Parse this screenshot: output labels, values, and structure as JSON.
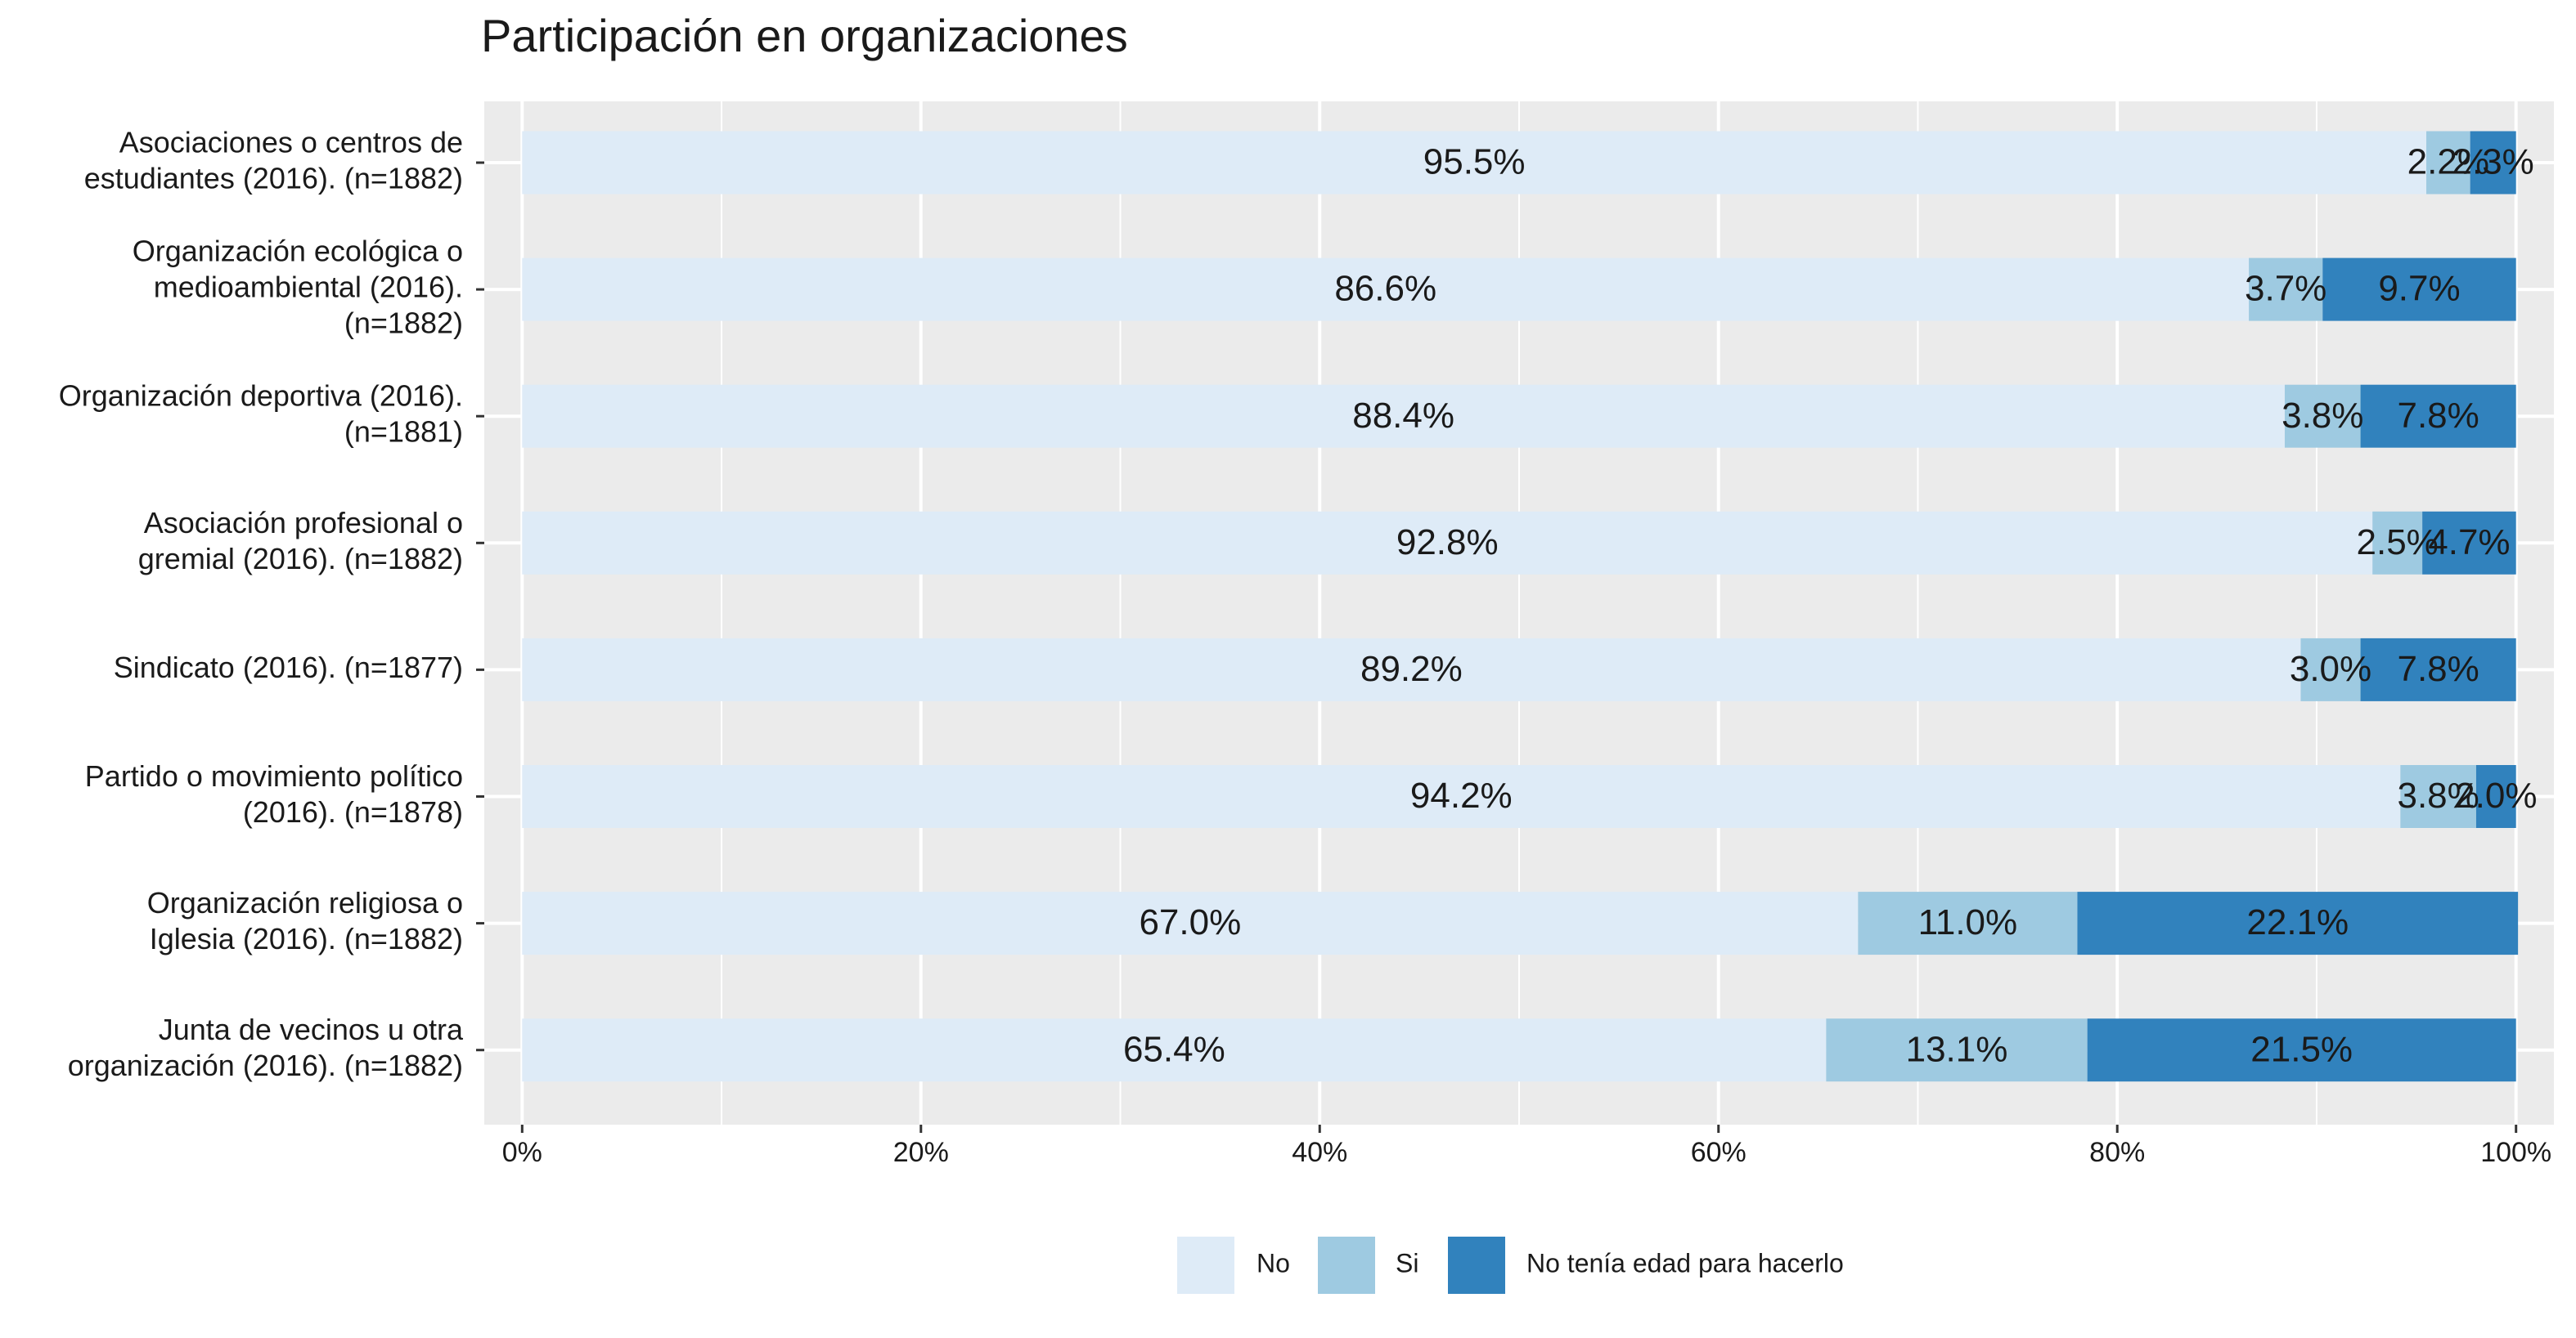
{
  "chart_data": {
    "type": "stacked-barh",
    "title": "Participación en organizaciones",
    "categories": [
      [
        "Asociaciones o centros de",
        "estudiantes (2016). (n=1882)"
      ],
      [
        "Organización ecológica o",
        "medioambiental (2016).",
        "(n=1882)"
      ],
      [
        "Organización deportiva (2016).",
        "(n=1881)"
      ],
      [
        "Asociación profesional o",
        "gremial (2016). (n=1882)"
      ],
      [
        "Sindicato (2016). (n=1877)"
      ],
      [
        "Partido o movimiento político",
        "(2016). (n=1878)"
      ],
      [
        "Organización religiosa o",
        "Iglesia (2016). (n=1882)"
      ],
      [
        "Junta de vecinos u otra",
        "organización (2016). (n=1882)"
      ]
    ],
    "series": [
      {
        "name": "No",
        "color": "#deebf7",
        "values": [
          95.5,
          86.6,
          88.4,
          92.8,
          89.2,
          94.2,
          67.0,
          65.4
        ],
        "value_labels": [
          "95.5%",
          "86.6%",
          "88.4%",
          "92.8%",
          "89.2%",
          "94.2%",
          "67.0%",
          "65.4%"
        ]
      },
      {
        "name": "Si",
        "color": "#9ecae1",
        "values": [
          2.2,
          3.7,
          3.8,
          2.5,
          3.0,
          3.8,
          11.0,
          13.1
        ],
        "value_labels": [
          "2.2%",
          "3.7%",
          "3.8%",
          "2.5%",
          "3.0%",
          "3.8%",
          "11.0%",
          "13.1%"
        ]
      },
      {
        "name": "No tenía edad para hacerlo",
        "color": "#3182bd",
        "values": [
          2.3,
          9.7,
          7.8,
          4.7,
          7.8,
          2.0,
          22.1,
          21.5
        ],
        "value_labels": [
          "2.3%",
          "9.7%",
          "7.8%",
          "4.7%",
          "7.8%",
          "2.0%",
          "22.1%",
          "21.5%"
        ]
      }
    ],
    "xlim": [
      -1.9,
      101.9
    ],
    "xticks": [
      {
        "value": 0,
        "label": "0%"
      },
      {
        "value": 20,
        "label": "20%"
      },
      {
        "value": 40,
        "label": "40%"
      },
      {
        "value": 60,
        "label": "60%"
      },
      {
        "value": 80,
        "label": "80%"
      },
      {
        "value": 100,
        "label": "100%"
      }
    ],
    "x_minor_ticks": [
      10,
      30,
      50,
      70,
      90
    ],
    "grid": true,
    "legend": "bottom"
  }
}
